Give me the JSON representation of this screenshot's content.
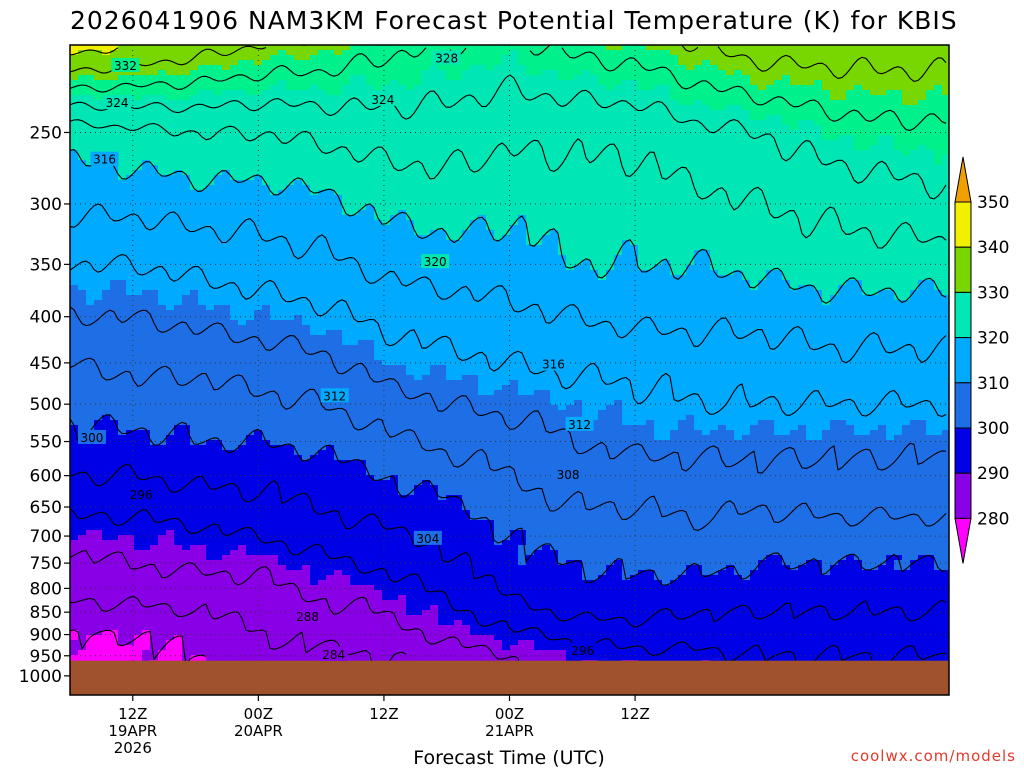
{
  "chart_data": {
    "type": "contour",
    "title": "2026041906 NAM3KM Forecast Potential Temperature (K) for KBIS",
    "xlabel": "Forecast Time (UTC)",
    "ylabel": "",
    "y_ticks": [
      250,
      300,
      350,
      400,
      450,
      500,
      550,
      600,
      650,
      700,
      750,
      800,
      850,
      900,
      950,
      1000
    ],
    "y_tick_labels": [
      "250",
      "300",
      "350",
      "400",
      "450",
      "500",
      "550",
      "600",
      "650",
      "700",
      "750",
      "800",
      "850",
      "900",
      "950",
      "1000"
    ],
    "ylim": [
      200,
      1050
    ],
    "x_range_hours": [
      6,
      90
    ],
    "x_ticks": [
      {
        "hour": 12,
        "lines": [
          "12Z",
          "19APR",
          "2026"
        ]
      },
      {
        "hour": 24,
        "lines": [
          "00Z",
          "20APR"
        ]
      },
      {
        "hour": 36,
        "lines": [
          "12Z"
        ]
      },
      {
        "hour": 48,
        "lines": [
          "00Z",
          "21APR"
        ]
      },
      {
        "hour": 60,
        "lines": [
          "12Z"
        ]
      }
    ],
    "colorbar": {
      "levels": [
        280,
        290,
        300,
        310,
        320,
        330,
        340,
        350
      ],
      "labels": [
        "280",
        "290",
        "300",
        "310",
        "320",
        "330",
        "340",
        "350"
      ],
      "colors": [
        "#ff00ff",
        "#8a00e6",
        "#0000e6",
        "#1e6ee6",
        "#00aaff",
        "#00e6b4",
        "#00f08c",
        "#78d700",
        "#f0f000",
        "#f0a000"
      ]
    },
    "contour_labels": [
      {
        "text": "332",
        "hour": 11.3,
        "p": 211
      },
      {
        "text": "328",
        "hour": 42.0,
        "p": 207
      },
      {
        "text": "324",
        "hour": 10.5,
        "p": 232
      },
      {
        "text": "324",
        "hour": 35.9,
        "p": 230
      },
      {
        "text": "316",
        "hour": 9.3,
        "p": 268
      },
      {
        "text": "320",
        "hour": 40.9,
        "p": 348
      },
      {
        "text": "316",
        "hour": 52.2,
        "p": 452
      },
      {
        "text": "312",
        "hour": 31.3,
        "p": 490
      },
      {
        "text": "312",
        "hour": 54.7,
        "p": 527
      },
      {
        "text": "308",
        "hour": 53.6,
        "p": 599
      },
      {
        "text": "300",
        "hour": 8.1,
        "p": 545
      },
      {
        "text": "296",
        "hour": 12.8,
        "p": 630
      },
      {
        "text": "304",
        "hour": 40.2,
        "p": 705
      },
      {
        "text": "288",
        "hour": 28.7,
        "p": 861
      },
      {
        "text": "284",
        "hour": 31.2,
        "p": 948
      },
      {
        "text": "296",
        "hour": 55.0,
        "p": 938
      }
    ],
    "ground_level_hpa": 962
  },
  "credit": "coolwx.com/models"
}
